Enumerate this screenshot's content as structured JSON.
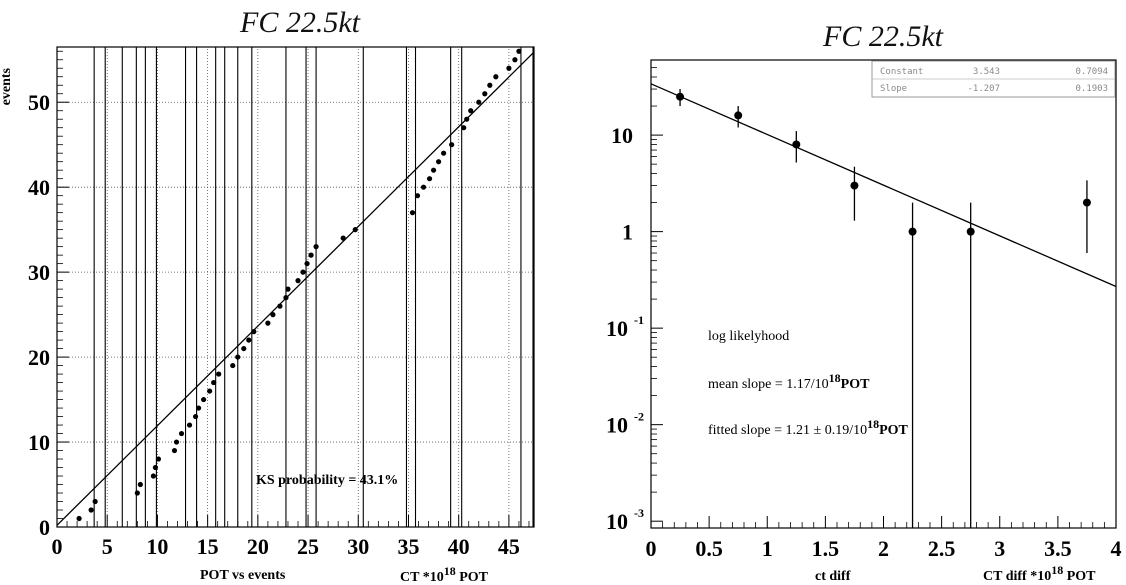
{
  "chart_data": [
    {
      "type": "scatter",
      "title": "FC 22.5kt",
      "ylabel": "events",
      "xlabel": "POT vs events",
      "xlabel_right_pre": "CT *10",
      "xlabel_right_exp": "18",
      "xlabel_right_post": " POT",
      "xlim": [
        0,
        47.5
      ],
      "ylim": [
        0,
        56.5
      ],
      "xticks": [
        0,
        5,
        10,
        15,
        20,
        25,
        30,
        35,
        40,
        45
      ],
      "xtick_labels": [
        "0",
        "5",
        "10",
        "15",
        "20",
        "25",
        "30",
        "35",
        "40",
        "45"
      ],
      "yticks": [
        0,
        10,
        20,
        30,
        40,
        50
      ],
      "ytick_labels": [
        "0",
        "10",
        "20",
        "30",
        "40",
        "50"
      ],
      "annotation": "KS probability = 43.1%",
      "grid": true,
      "vertical_markers": [
        3.7,
        4.8,
        6.5,
        7.9,
        8.8,
        9.9,
        12.8,
        13.9,
        15.8,
        16.7,
        18.0,
        19.4,
        22.8,
        24.8,
        25.8,
        30.5,
        34.8,
        35.7,
        39.2,
        40.3,
        46.2,
        47.4
      ],
      "line": {
        "x": [
          0,
          47.5
        ],
        "y": [
          0.2,
          55.9
        ]
      },
      "points": [
        [
          2.2,
          1
        ],
        [
          3.4,
          2
        ],
        [
          3.8,
          3
        ],
        [
          8.0,
          4
        ],
        [
          8.3,
          5
        ],
        [
          9.6,
          6
        ],
        [
          9.8,
          7
        ],
        [
          10.1,
          8
        ],
        [
          11.7,
          9
        ],
        [
          11.9,
          10
        ],
        [
          12.4,
          11
        ],
        [
          13.2,
          12
        ],
        [
          13.8,
          13
        ],
        [
          14.1,
          14
        ],
        [
          14.6,
          15
        ],
        [
          15.2,
          16
        ],
        [
          15.6,
          17
        ],
        [
          16.1,
          18
        ],
        [
          17.5,
          19
        ],
        [
          18.0,
          20
        ],
        [
          18.6,
          21
        ],
        [
          19.1,
          22
        ],
        [
          19.6,
          23
        ],
        [
          21.0,
          24
        ],
        [
          21.5,
          25
        ],
        [
          22.2,
          26
        ],
        [
          22.8,
          27
        ],
        [
          23.0,
          28
        ],
        [
          24.0,
          29
        ],
        [
          24.5,
          30
        ],
        [
          24.9,
          31
        ],
        [
          25.3,
          32
        ],
        [
          25.8,
          33
        ],
        [
          28.5,
          34
        ],
        [
          29.7,
          35
        ],
        [
          35.4,
          37
        ],
        [
          35.9,
          39
        ],
        [
          36.5,
          40
        ],
        [
          37.1,
          41
        ],
        [
          37.5,
          42
        ],
        [
          38.0,
          43
        ],
        [
          38.5,
          44
        ],
        [
          39.3,
          45
        ],
        [
          40.5,
          47
        ],
        [
          40.8,
          48
        ],
        [
          41.2,
          49
        ],
        [
          42.0,
          50
        ],
        [
          42.6,
          51
        ],
        [
          43.1,
          52
        ],
        [
          43.7,
          53
        ],
        [
          45.0,
          54
        ],
        [
          45.6,
          55
        ],
        [
          46.0,
          56
        ]
      ]
    },
    {
      "type": "scatter",
      "title": "FC 22.5kt",
      "xlabel": "ct diff",
      "xlabel_right_pre": "CT diff *10",
      "xlabel_right_exp": "18",
      "xlabel_right_post": " POT",
      "xlim": [
        0,
        4
      ],
      "ylog": true,
      "ylim": [
        0.00085,
        60
      ],
      "xticks": [
        0,
        0.5,
        1,
        1.5,
        2,
        2.5,
        3,
        3.5,
        4
      ],
      "xtick_labels": [
        "0",
        "0.5",
        "1",
        "1.5",
        "2",
        "2.5",
        "3",
        "3.5",
        "4"
      ],
      "yticks": [
        {
          "value": 0.001,
          "base": "10",
          "exp": "-3"
        },
        {
          "value": 0.01,
          "base": "10",
          "exp": "-2"
        },
        {
          "value": 0.1,
          "base": "10",
          "exp": "-1"
        },
        {
          "value": 1,
          "base": "1",
          "exp": ""
        },
        {
          "value": 10,
          "base": "10",
          "exp": ""
        }
      ],
      "points": [
        {
          "x": 0.25,
          "y": 25,
          "lo": 20,
          "hi": 30
        },
        {
          "x": 0.75,
          "y": 16,
          "lo": 12,
          "hi": 20
        },
        {
          "x": 1.25,
          "y": 8,
          "lo": 5.2,
          "hi": 11
        },
        {
          "x": 1.75,
          "y": 3,
          "lo": 1.3,
          "hi": 4.7
        },
        {
          "x": 2.25,
          "y": 1,
          "lo": 0.00085,
          "hi": 2
        },
        {
          "x": 2.75,
          "y": 1,
          "lo": 0.00085,
          "hi": 2
        },
        {
          "x": 3.75,
          "y": 2,
          "lo": 0.6,
          "hi": 3.4
        }
      ],
      "fit_line": {
        "x": [
          0,
          4
        ],
        "y": [
          34,
          0.27
        ]
      },
      "stat_box": [
        {
          "label": "Constant",
          "value": "3.543",
          "error": "0.7094"
        },
        {
          "label": "Slope",
          "value": "-1.207",
          "error": "0.1903"
        }
      ],
      "annotations": {
        "line1": "log likelyhood",
        "line2_pre": "mean slope  = 1.17/10",
        "line2_exp": "18",
        "line2_post": "POT",
        "line3_pre": "fitted slope  = 1.21 ",
        "line3_pm": "±",
        "line3_mid": " 0.19/10",
        "line3_exp": "18",
        "line3_post": "POT"
      }
    }
  ]
}
